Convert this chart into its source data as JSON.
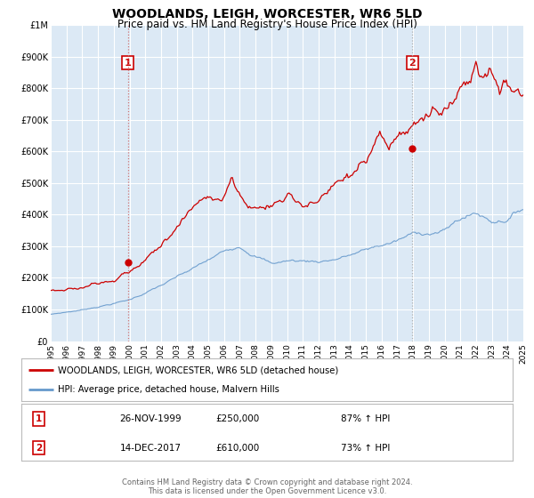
{
  "title": "WOODLANDS, LEIGH, WORCESTER, WR6 5LD",
  "subtitle": "Price paid vs. HM Land Registry's House Price Index (HPI)",
  "title_fontsize": 10,
  "subtitle_fontsize": 8.5,
  "bg_color": "#dce9f5",
  "grid_color": "#ffffff",
  "sale1_date": 1999.9,
  "sale1_price": 250000,
  "sale2_date": 2017.95,
  "sale2_price": 610000,
  "red_line_color": "#cc0000",
  "blue_line_color": "#6699cc",
  "marker_color": "#cc0000",
  "xmin": 1995,
  "xmax": 2025,
  "ymin": 0,
  "ymax": 1000000,
  "ytick_values": [
    0,
    100000,
    200000,
    300000,
    400000,
    500000,
    600000,
    700000,
    800000,
    900000,
    1000000
  ],
  "ytick_labels": [
    "£0",
    "£100K",
    "£200K",
    "£300K",
    "£400K",
    "£500K",
    "£600K",
    "£700K",
    "£800K",
    "£900K",
    "£1M"
  ],
  "xtick_values": [
    1995,
    1996,
    1997,
    1998,
    1999,
    2000,
    2001,
    2002,
    2003,
    2004,
    2005,
    2006,
    2007,
    2008,
    2009,
    2010,
    2011,
    2012,
    2013,
    2014,
    2015,
    2016,
    2017,
    2018,
    2019,
    2020,
    2021,
    2022,
    2023,
    2024,
    2025
  ],
  "legend_red_label": "WOODLANDS, LEIGH, WORCESTER, WR6 5LD (detached house)",
  "legend_blue_label": "HPI: Average price, detached house, Malvern Hills",
  "table_row1": [
    "1",
    "26-NOV-1999",
    "£250,000",
    "87% ↑ HPI"
  ],
  "table_row2": [
    "2",
    "14-DEC-2017",
    "£610,000",
    "73% ↑ HPI"
  ],
  "footer_text": "Contains HM Land Registry data © Crown copyright and database right 2024.\nThis data is licensed under the Open Government Licence v3.0.",
  "footer_fontsize": 6.0
}
